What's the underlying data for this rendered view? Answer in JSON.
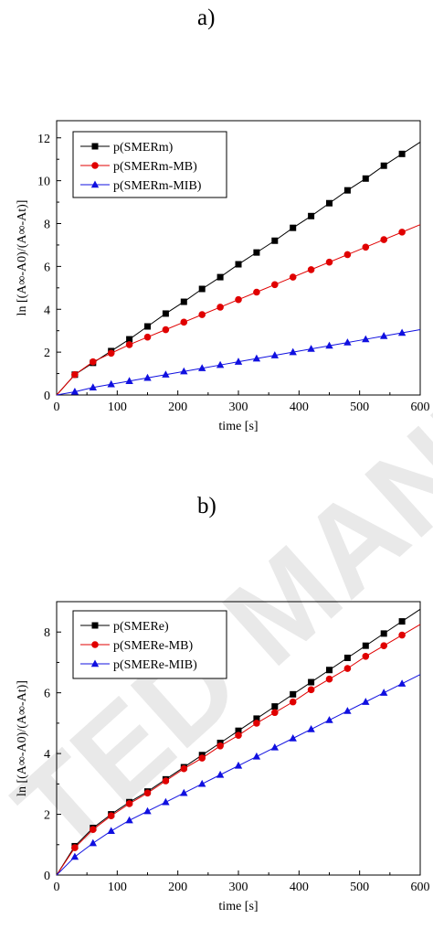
{
  "panels": {
    "a": {
      "label": "a)"
    },
    "b": {
      "label": "b)"
    }
  },
  "watermark": {
    "text": "TED MANU"
  },
  "chart_data": [
    {
      "type": "line",
      "panel": "a",
      "xlabel": "time [s]",
      "ylabel": "ln [(A∞-A0)/(A∞-At)]",
      "xlim": [
        0,
        600
      ],
      "ylim": [
        0,
        12.8
      ],
      "xticks": [
        0,
        100,
        200,
        300,
        400,
        500,
        600
      ],
      "yticks": [
        0,
        2,
        4,
        6,
        8,
        10,
        12
      ],
      "grid": false,
      "legend": "top-left",
      "series": [
        {
          "name": "p(SMERm)",
          "color": "#000000",
          "marker": "square",
          "x": [
            0,
            30,
            60,
            90,
            120,
            150,
            180,
            210,
            240,
            270,
            300,
            330,
            360,
            390,
            420,
            450,
            480,
            510,
            540,
            570
          ],
          "values": [
            0,
            0.95,
            1.5,
            2.05,
            2.6,
            3.2,
            3.8,
            4.35,
            4.95,
            5.5,
            6.1,
            6.65,
            7.2,
            7.8,
            8.35,
            8.95,
            9.55,
            10.1,
            10.7,
            11.25
          ]
        },
        {
          "name": "p(SMERm-MB)",
          "color": "#e00000",
          "marker": "circle",
          "x": [
            0,
            30,
            60,
            90,
            120,
            150,
            180,
            210,
            240,
            270,
            300,
            330,
            360,
            390,
            420,
            450,
            480,
            510,
            540,
            570
          ],
          "values": [
            0,
            0.95,
            1.55,
            1.95,
            2.35,
            2.7,
            3.05,
            3.4,
            3.75,
            4.1,
            4.45,
            4.8,
            5.15,
            5.5,
            5.85,
            6.2,
            6.55,
            6.9,
            7.25,
            7.6
          ]
        },
        {
          "name": "p(SMERm-MIB)",
          "color": "#1010e0",
          "marker": "triangle",
          "x": [
            0,
            30,
            60,
            90,
            120,
            150,
            180,
            210,
            240,
            270,
            300,
            330,
            360,
            390,
            420,
            450,
            480,
            510,
            540,
            570
          ],
          "values": [
            0,
            0.15,
            0.35,
            0.5,
            0.65,
            0.8,
            0.95,
            1.1,
            1.25,
            1.4,
            1.55,
            1.7,
            1.85,
            2.0,
            2.15,
            2.3,
            2.45,
            2.6,
            2.75,
            2.9
          ]
        }
      ]
    },
    {
      "type": "line",
      "panel": "b",
      "xlabel": "time [s]",
      "ylabel": "ln [(A∞-A0)/(A∞-At)]",
      "xlim": [
        0,
        600
      ],
      "ylim": [
        0,
        9
      ],
      "xticks": [
        0,
        100,
        200,
        300,
        400,
        500,
        600
      ],
      "yticks": [
        0,
        2,
        4,
        6,
        8
      ],
      "grid": false,
      "legend": "top-left",
      "series": [
        {
          "name": "p(SMERe)",
          "color": "#000000",
          "marker": "square",
          "x": [
            0,
            30,
            60,
            90,
            120,
            150,
            180,
            210,
            240,
            270,
            300,
            330,
            360,
            390,
            420,
            450,
            480,
            510,
            540,
            570
          ],
          "values": [
            0,
            0.95,
            1.55,
            2.0,
            2.4,
            2.75,
            3.15,
            3.55,
            3.95,
            4.35,
            4.75,
            5.15,
            5.55,
            5.95,
            6.35,
            6.75,
            7.15,
            7.55,
            7.95,
            8.35
          ]
        },
        {
          "name": "p(SMERe-MB)",
          "color": "#e00000",
          "marker": "circle",
          "x": [
            0,
            30,
            60,
            90,
            120,
            150,
            180,
            210,
            240,
            270,
            300,
            330,
            360,
            390,
            420,
            450,
            480,
            510,
            540,
            570
          ],
          "values": [
            0,
            0.9,
            1.5,
            1.95,
            2.35,
            2.7,
            3.1,
            3.5,
            3.85,
            4.25,
            4.6,
            5.0,
            5.35,
            5.7,
            6.1,
            6.45,
            6.8,
            7.2,
            7.55,
            7.9
          ]
        },
        {
          "name": "p(SMERe-MIB)",
          "color": "#1010e0",
          "marker": "triangle",
          "x": [
            0,
            30,
            60,
            90,
            120,
            150,
            180,
            210,
            240,
            270,
            300,
            330,
            360,
            390,
            420,
            450,
            480,
            510,
            540,
            570
          ],
          "values": [
            0,
            0.6,
            1.05,
            1.45,
            1.8,
            2.1,
            2.4,
            2.7,
            3.0,
            3.3,
            3.6,
            3.9,
            4.2,
            4.5,
            4.8,
            5.1,
            5.4,
            5.7,
            6.0,
            6.3
          ]
        }
      ]
    }
  ]
}
